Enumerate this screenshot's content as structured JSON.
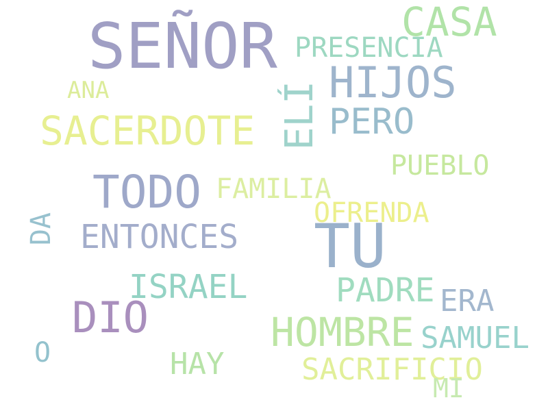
{
  "words": [
    {
      "text": "SEÑOR",
      "color": "#a09fc4"
    },
    {
      "text": "CASA",
      "color": "#b1e3a8"
    },
    {
      "text": "PRESENCIA",
      "color": "#9dd8c1"
    },
    {
      "text": "HIJOS",
      "color": "#9eb4cc"
    },
    {
      "text": "ANA",
      "color": "#dcec9a"
    },
    {
      "text": "ELÍ",
      "color": "#9fd3cb",
      "orientation": "vertical"
    },
    {
      "text": "SACERDOTE",
      "color": "#e7ef91"
    },
    {
      "text": "PERO",
      "color": "#99bccc"
    },
    {
      "text": "PUEBLO",
      "color": "#c6e89e"
    },
    {
      "text": "TODO",
      "color": "#9ea8c9"
    },
    {
      "text": "FAMILIA",
      "color": "#dceea1"
    },
    {
      "text": "OFRENDA",
      "color": "#ecef8c"
    },
    {
      "text": "DA",
      "color": "#97c1ce",
      "orientation": "vertical"
    },
    {
      "text": "ENTONCES",
      "color": "#a3adcb"
    },
    {
      "text": "TU",
      "color": "#9ab1cb"
    },
    {
      "text": "ISRAEL",
      "color": "#94d3c4"
    },
    {
      "text": "PADRE",
      "color": "#a0dcbf"
    },
    {
      "text": "ERA",
      "color": "#a3b7ce"
    },
    {
      "text": "DIO",
      "color": "#a98fbd"
    },
    {
      "text": "HOMBRE",
      "color": "#bde5a4"
    },
    {
      "text": "SAMUEL",
      "color": "#98d2cc"
    },
    {
      "text": "O",
      "color": "#93c2cd"
    },
    {
      "text": "HAY",
      "color": "#b7e3a8"
    },
    {
      "text": "SACRIFICIO",
      "color": "#e1ef99"
    },
    {
      "text": "MI",
      "color": "#c7eab1"
    }
  ]
}
